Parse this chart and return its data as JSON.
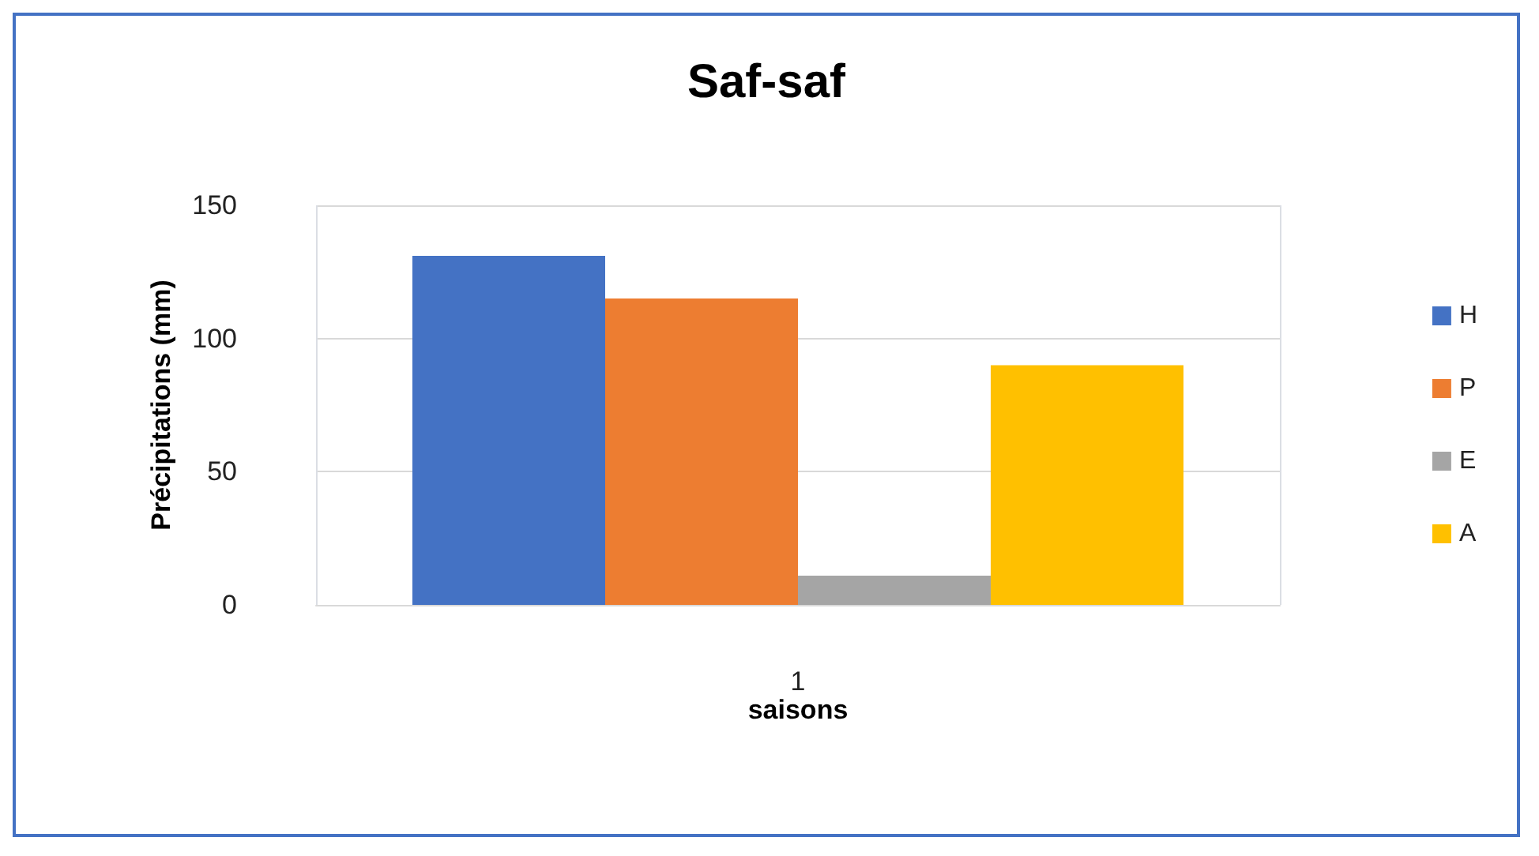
{
  "chart_data": {
    "type": "bar",
    "title": "Saf-saf",
    "xlabel": "saisons",
    "ylabel": "Précipitations (mm)",
    "categories": [
      "1"
    ],
    "series": [
      {
        "name": "H",
        "color": "#4472c4",
        "values": [
          131
        ]
      },
      {
        "name": "P",
        "color": "#ed7d31",
        "values": [
          115
        ]
      },
      {
        "name": "E",
        "color": "#a5a5a5",
        "values": [
          11
        ]
      },
      {
        "name": "A",
        "color": "#ffc000",
        "values": [
          90
        ]
      }
    ],
    "ylim": [
      0,
      150
    ],
    "yticks": [
      0,
      50,
      100,
      150
    ],
    "grid": true,
    "legend": "right"
  }
}
